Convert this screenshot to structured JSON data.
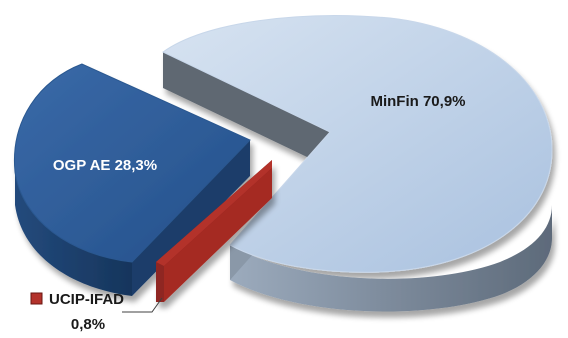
{
  "chart_data": {
    "type": "pie",
    "style": "3d-exploded",
    "legend": "none",
    "slices": [
      {
        "name": "MinFin",
        "label": "MinFin 70,9%",
        "value": 70.9,
        "color": "#b9cde5"
      },
      {
        "name": "OGP AE",
        "label": "OGP AE 28,3%",
        "value": 28.3,
        "color": "#2e5c97"
      },
      {
        "name": "UCIP-IFAD",
        "label": "UCIP-IFAD",
        "value_label": "0,8%",
        "value": 0.8,
        "color": "#b3322b"
      }
    ]
  }
}
